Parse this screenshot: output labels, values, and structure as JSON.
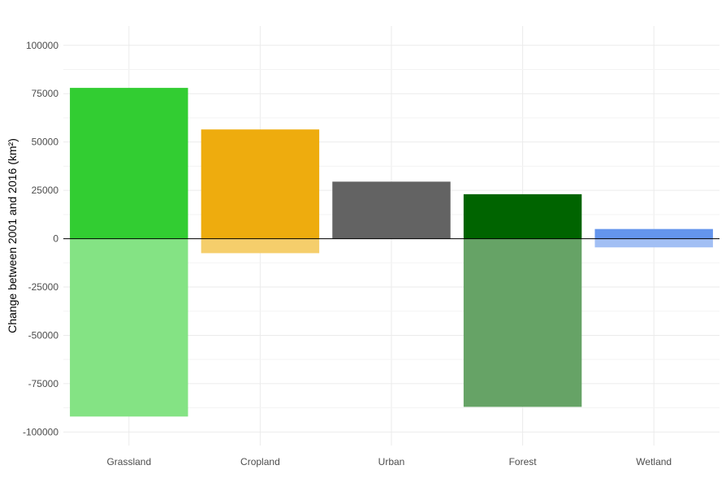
{
  "chart_data": {
    "type": "bar",
    "stacked": "diverging",
    "title": "",
    "xlabel": "",
    "ylabel": "Change between 2001 and 2016 (km²)",
    "categories": [
      "Grassland",
      "Cropland",
      "Urban",
      "Forest",
      "Wetland"
    ],
    "series": [
      {
        "values": [
          78000,
          56500,
          29500,
          23000,
          5000
        ]
      },
      {
        "values": [
          -92000,
          -7500,
          0,
          -87000,
          -4500
        ]
      }
    ],
    "colors": {
      "gain": [
        "#32cd32",
        "#eeac0e",
        "#636363",
        "#006400",
        "#6495ed"
      ],
      "loss": [
        "#84e384",
        "#f5ce6b",
        "#a0a0a0",
        "#66a366",
        "#a2bff4"
      ]
    },
    "ylim": [
      -107000,
      110000
    ],
    "yticks": [
      -100000,
      -75000,
      -50000,
      -25000,
      0,
      25000,
      50000,
      75000,
      100000
    ],
    "ytick_labels": [
      "-100000",
      "-75000",
      "-50000",
      "-25000",
      "0",
      "25000",
      "50000",
      "75000",
      "100000"
    ],
    "grid": true,
    "zero_line": true,
    "legend": "none"
  }
}
